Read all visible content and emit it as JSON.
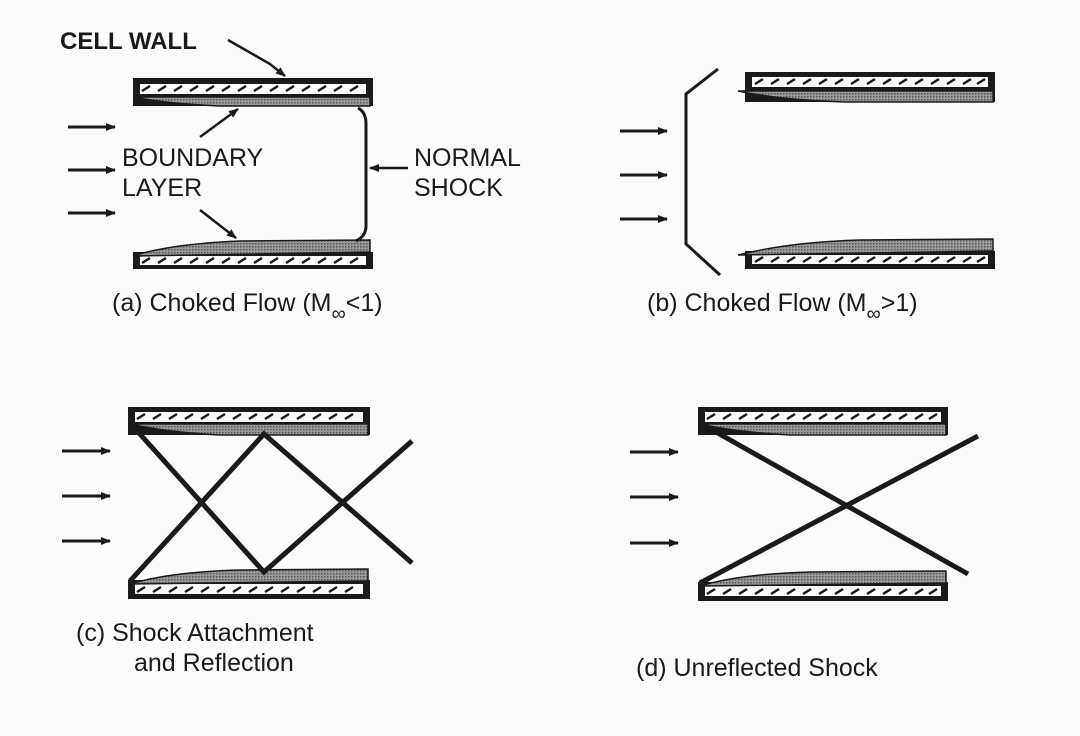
{
  "labels": {
    "cell_wall": "CELL WALL",
    "boundary_layer_1": "BOUNDARY",
    "boundary_layer_2": "LAYER",
    "normal_shock_1": "NORMAL",
    "normal_shock_2": "SHOCK"
  },
  "captions": {
    "a": {
      "prefix": "(a)  Choked Flow (M",
      "sub": "∞",
      "suffix": "<1)"
    },
    "b": {
      "prefix": "(b)  Choked Flow (M",
      "sub": "∞",
      "suffix": ">1)"
    },
    "c_line1": "(c)  Shock Attachment",
    "c_line2": "and Reflection",
    "d": "(d)  Unreflected Shock"
  },
  "colors": {
    "ink": "#1a1a1a",
    "boundary_shade": "#8a8a8a",
    "background": "#fbfbfb"
  }
}
